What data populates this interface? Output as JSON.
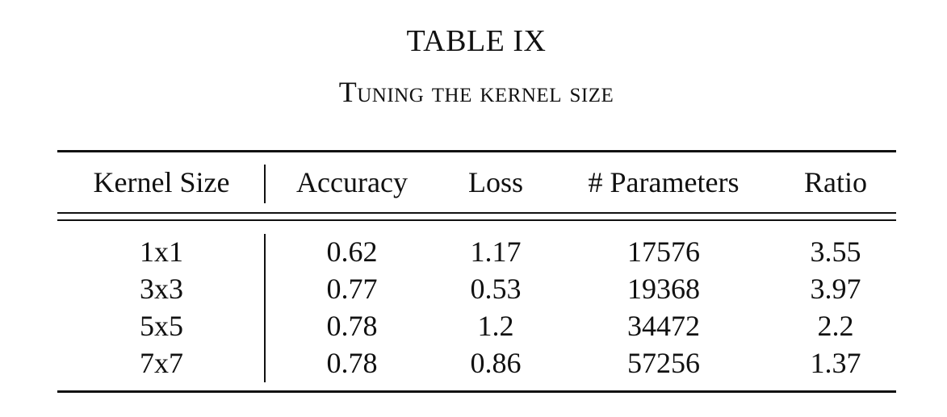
{
  "table": {
    "number": "TABLE IX",
    "caption": "Tuning the kernel size",
    "headers": [
      "Kernel Size",
      "Accuracy",
      "Loss",
      "# Parameters",
      "Ratio"
    ],
    "rows": [
      [
        "1x1",
        "0.62",
        "1.17",
        "17576",
        "3.55"
      ],
      [
        "3x3",
        "0.77",
        "0.53",
        "19368",
        "3.97"
      ],
      [
        "5x5",
        "0.78",
        "1.2",
        "34472",
        "2.2"
      ],
      [
        "7x7",
        "0.78",
        "0.86",
        "57256",
        "1.37"
      ]
    ]
  }
}
